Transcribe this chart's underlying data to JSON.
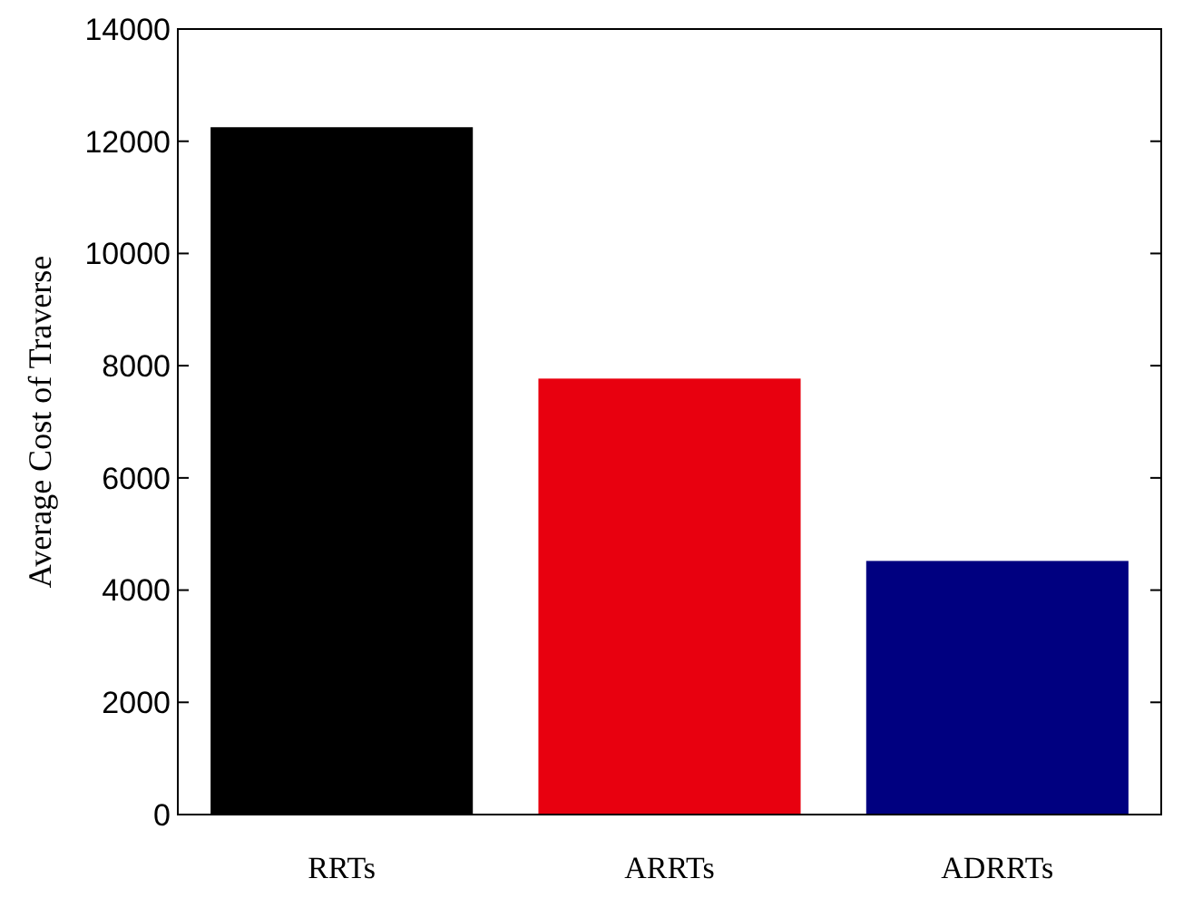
{
  "chart_data": {
    "type": "bar",
    "ylabel": "Average Cost of Traverse",
    "categories": [
      "RRTs",
      "ARRTs",
      "ADRRTs"
    ],
    "values": [
      12250,
      7770,
      4520
    ],
    "colors": [
      "#000000",
      "#e8000f",
      "#000080"
    ],
    "ylim": [
      0,
      14000
    ],
    "yticks": [
      0,
      2000,
      4000,
      6000,
      8000,
      10000,
      12000,
      14000
    ],
    "grid": false
  }
}
